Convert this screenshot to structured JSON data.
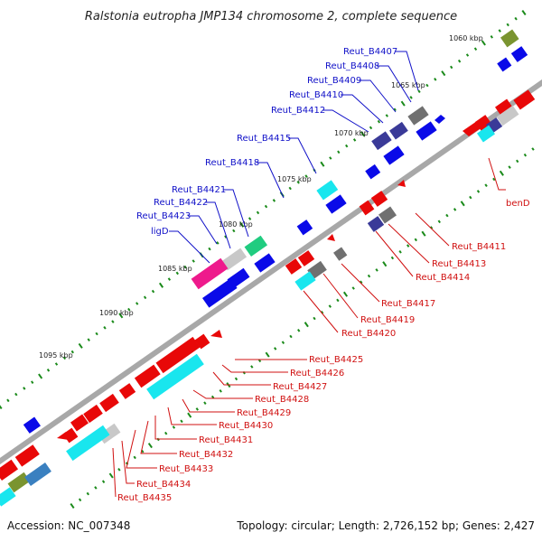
{
  "title": "Ralstonia eutropha JMP134 chromosome 2, complete sequence",
  "footer": {
    "accession": "Accession: NC_007348",
    "summary": "Topology: circular; Length: 2,726,152 bp; Genes: 2,427"
  },
  "ticks": [
    "1060 kbp",
    "1065 kbp",
    "1070 kbp",
    "1075 kbp",
    "1080 kbp",
    "1085 kbp",
    "1090 kbp",
    "1095 kbp"
  ],
  "genes_forward": [
    "Reut_B4407",
    "Reut_B4408",
    "Reut_B4409",
    "Reut_B4410",
    "Reut_B4412",
    "Reut_B4415",
    "Reut_B4418",
    "Reut_B4421",
    "Reut_B4422",
    "Reut_B4423",
    "ligD"
  ],
  "genes_reverse": [
    "benD",
    "Reut_B4411",
    "Reut_B4413",
    "Reut_B4414",
    "Reut_B4417",
    "Reut_B4419",
    "Reut_B4420",
    "Reut_B4425",
    "Reut_B4426",
    "Reut_B4427",
    "Reut_B4428",
    "Reut_B4429",
    "Reut_B4430",
    "Reut_B4431",
    "Reut_B4432",
    "Reut_B4433",
    "Reut_B4434",
    "Reut_B4435"
  ],
  "colors": {
    "forward": "#0a0ae8",
    "reverse": "#e80808",
    "cyan": "#19e6ee",
    "grey": "#707070",
    "navy": "#3a3a98",
    "magenta": "#ee1a8c",
    "green": "#20cc80",
    "olive": "#7a9430",
    "backbone": "#909090",
    "tick": "#1a8a1a"
  }
}
